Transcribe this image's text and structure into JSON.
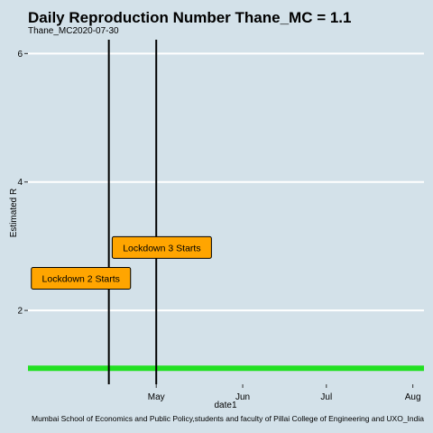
{
  "chart_data": {
    "type": "line",
    "title": "Daily Reproduction Number Thane_MC = 1.1",
    "subtitle": "Thane_MC2020-07-30",
    "xlabel": "date1",
    "ylabel": "Estimated R",
    "caption": "Mumbai School of Economics and Public Policy,students and faculty of Pillai College of Engineering and UXO_India",
    "x_tick_labels": [
      "May",
      "Jun",
      "Jul",
      "Aug"
    ],
    "x_tick_dates": [
      "2020-05-01",
      "2020-06-01",
      "2020-07-01",
      "2020-08-01"
    ],
    "xlim": [
      "2020-03-16",
      "2020-08-05"
    ],
    "ylim": [
      0.85,
      6.3
    ],
    "y_ticks": [
      2,
      4,
      6
    ],
    "grid": "horizontal",
    "series": [
      {
        "x": [
          "2020-03-16",
          "2020-08-05"
        ],
        "values": [
          1.1,
          1.1
        ],
        "color": "#22e022"
      }
    ],
    "vlines": [
      {
        "date": "2020-04-14",
        "color": "#000000"
      },
      {
        "date": "2020-05-01",
        "color": "#000000"
      }
    ],
    "annotations": [
      {
        "text": "Lockdown 2 Starts",
        "date": "2020-04-04",
        "y": 2.5,
        "fill": "#ffa500"
      },
      {
        "text": "Lockdown 3 Starts",
        "date": "2020-05-03",
        "y": 2.98,
        "fill": "#ffa500"
      }
    ],
    "background": "#d3e1e9"
  }
}
